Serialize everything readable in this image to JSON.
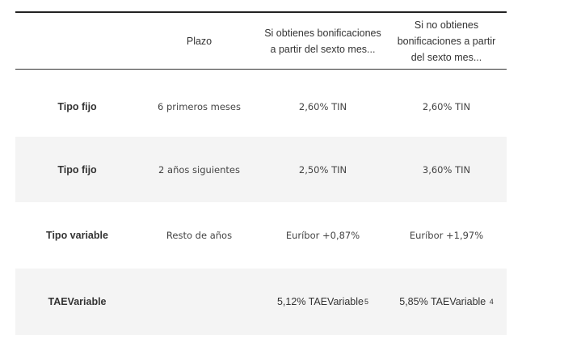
{
  "table": {
    "headers": [
      "",
      "Plazo",
      "Si obtienes bonificaciones a partir del sexto mes...",
      "Si no obtienes bonificaciones a partir del sexto mes..."
    ],
    "rows": [
      {
        "label": "Tipo fijo",
        "plazo": "6 primeros meses",
        "con_bonificaciones": "2,60% TIN",
        "sin_bonificaciones": "2,60% TIN"
      },
      {
        "label": "Tipo fijo",
        "plazo": "2 años siguientes",
        "con_bonificaciones": "2,50% TIN",
        "sin_bonificaciones": "3,60% TIN"
      },
      {
        "label": "Tipo variable",
        "plazo": "Resto de años",
        "con_bonificaciones": "Euríbor  +0,87%",
        "sin_bonificaciones": "Euríbor  +1,97%"
      },
      {
        "label": "TAEVariable",
        "plazo": "",
        "con_bonificaciones": "5,12% TAEVariable",
        "con_bonificaciones_note": "5",
        "sin_bonificaciones": "5,85% TAEVariable ",
        "sin_bonificaciones_note": "4"
      }
    ]
  },
  "colors": {
    "row_stripe": "#f4f4f4",
    "rule": "#222222",
    "text": "#333333"
  }
}
